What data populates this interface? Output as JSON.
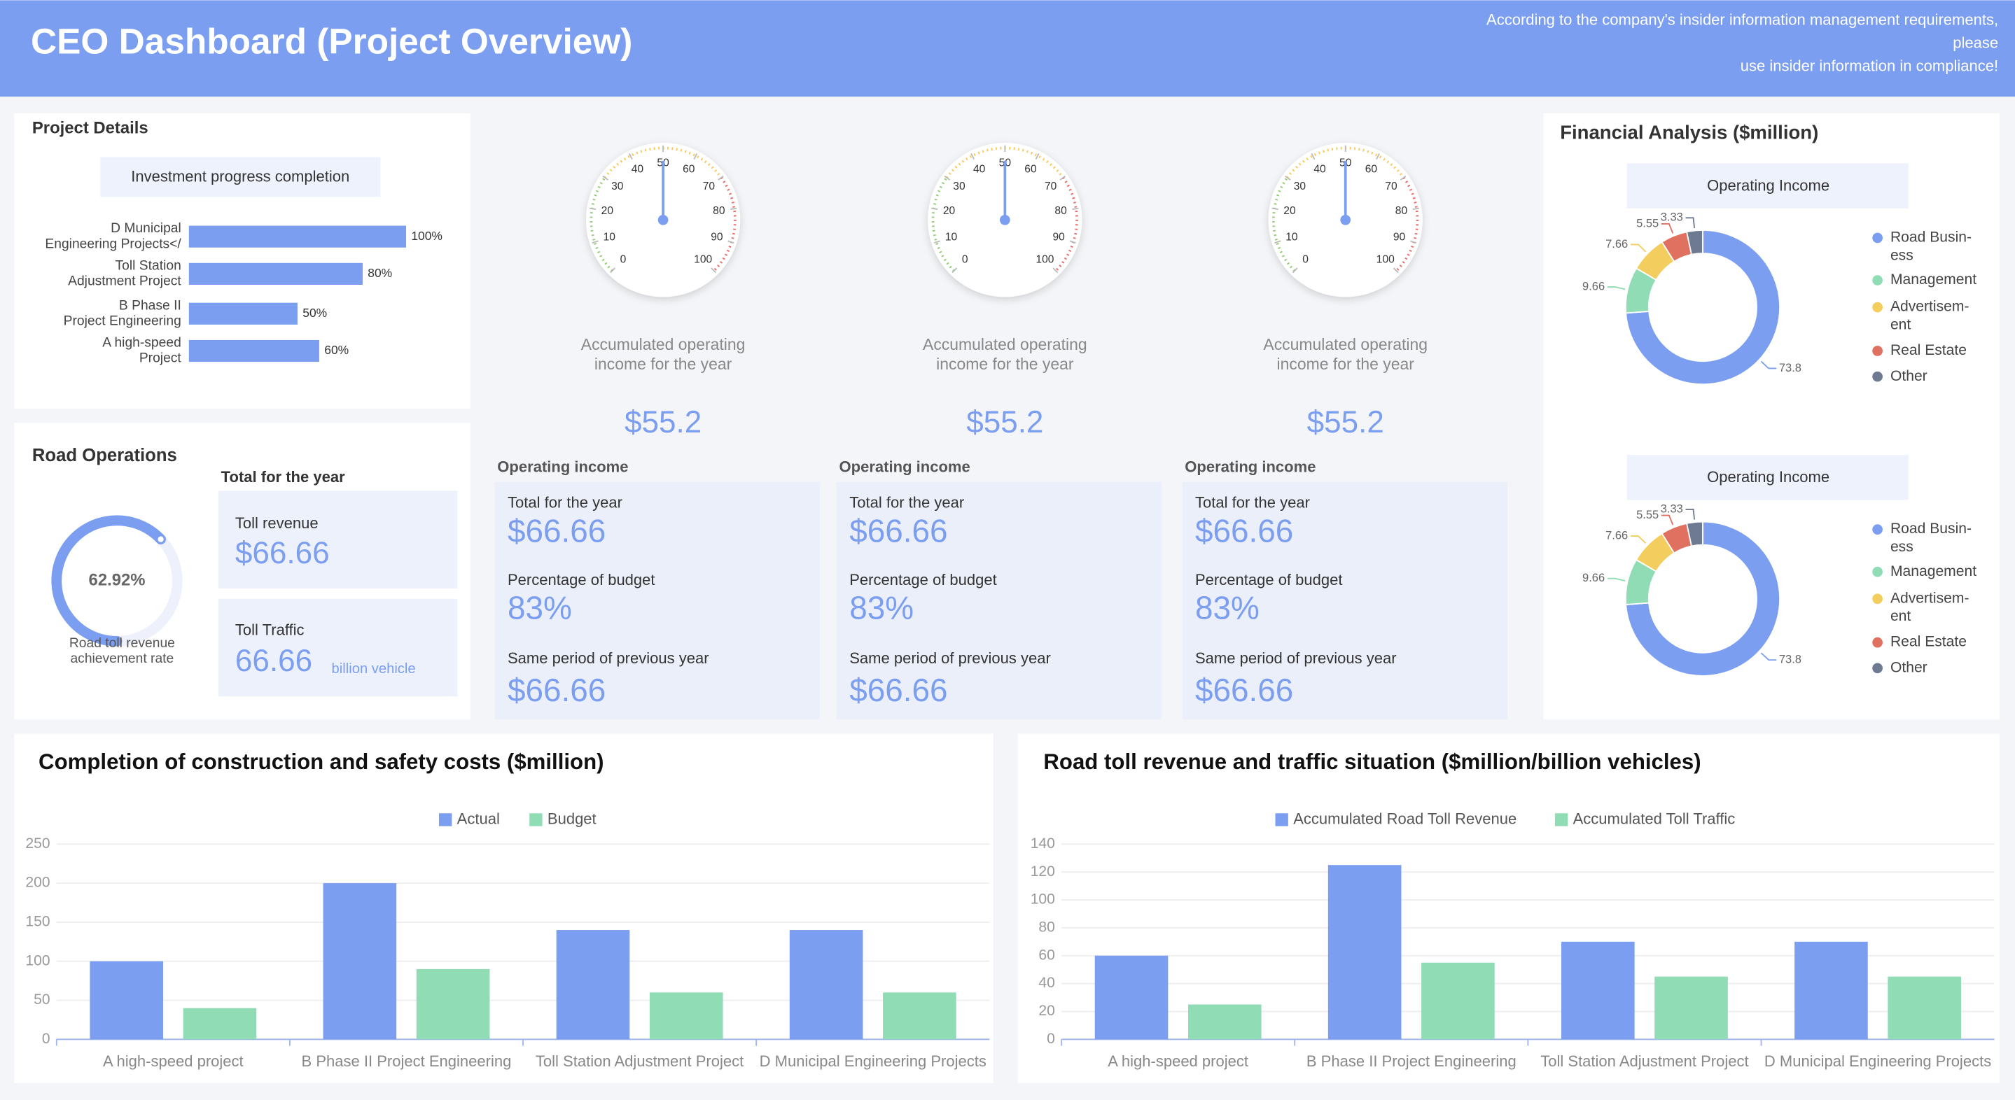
{
  "header": {
    "title": "CEO Dashboard (Project Overview)",
    "notice": [
      "According to the company's insider information management requirements,",
      "please",
      "use insider information in compliance!"
    ]
  },
  "panels": {
    "project_details": "Project Details",
    "road_operations": "Road Operations",
    "road_total_heading": "Total for the year",
    "financial_analysis": "Financial Analysis ($million)"
  },
  "road_stats": [
    {
      "label": "Toll revenue",
      "value": "$66.66"
    },
    {
      "label": "Toll Traffic",
      "value": "66.66",
      "unit": "billion vehicle"
    }
  ],
  "income_cards": [
    {
      "heading": "Operating income",
      "items": [
        {
          "label": "Total for the year",
          "value": "$66.66"
        },
        {
          "label": "Percentage of budget",
          "value": "83%"
        },
        {
          "label": "Same period of previous year",
          "value": "$66.66"
        }
      ]
    },
    {
      "heading": "Operating income",
      "items": [
        {
          "label": "Total for the year",
          "value": "$66.66"
        },
        {
          "label": "Percentage of budget",
          "value": "83%"
        },
        {
          "label": "Same period of previous year",
          "value": "$66.66"
        }
      ]
    },
    {
      "heading": "Operating income",
      "items": [
        {
          "label": "Total for the year",
          "value": "$66.66"
        },
        {
          "label": "Percentage of budget",
          "value": "83%"
        },
        {
          "label": "Same period of previous year",
          "value": "$66.66"
        }
      ]
    }
  ],
  "chart_data": [
    {
      "type": "hbar",
      "title": "Investment progress completion",
      "categories": [
        [
          "D Municipal",
          "Engineering Projects</"
        ],
        [
          "Toll Station",
          "Adjustment Project"
        ],
        [
          "B Phase II",
          "Project Engineering"
        ],
        [
          "A high-speed",
          "Project"
        ]
      ],
      "values": [
        100,
        80,
        50,
        60
      ],
      "value_labels": [
        "100%",
        "80%",
        "50%",
        "60%"
      ],
      "color": "#7b9ef0"
    },
    {
      "type": "gauge",
      "value": 50,
      "ylim": [
        0,
        100
      ],
      "yticks": [
        0,
        10,
        20,
        30,
        40,
        50,
        60,
        70,
        80,
        90,
        100
      ],
      "caption": [
        "Accumulated operating",
        "income for the year"
      ],
      "annotation": "$55.2",
      "color": "#7b9ef0"
    },
    {
      "type": "gauge",
      "value": 50,
      "ylim": [
        0,
        100
      ],
      "yticks": [
        0,
        10,
        20,
        30,
        40,
        50,
        60,
        70,
        80,
        90,
        100
      ],
      "caption": [
        "Accumulated operating",
        "income for the year"
      ],
      "annotation": "$55.2",
      "color": "#7b9ef0"
    },
    {
      "type": "gauge",
      "value": 50,
      "ylim": [
        0,
        100
      ],
      "yticks": [
        0,
        10,
        20,
        30,
        40,
        50,
        60,
        70,
        80,
        90,
        100
      ],
      "caption": [
        "Accumulated operating",
        "income for the year"
      ],
      "annotation": "$55.2",
      "color": "#7b9ef0"
    },
    {
      "type": "ring",
      "value": 62.92,
      "value_label": "62.92%",
      "caption": [
        "Road toll revenue",
        "achievement rate"
      ],
      "color": "#7b9ef0"
    },
    {
      "type": "pie",
      "title": "Operating Income",
      "categories": [
        [
          "Road Busin-",
          "ess"
        ],
        [
          "Management"
        ],
        [
          "Advertisem-",
          "ent"
        ],
        [
          "Real Estate"
        ],
        [
          "Other"
        ]
      ],
      "values": [
        73.8,
        9.66,
        7.66,
        5.55,
        3.33
      ],
      "colors": [
        "#7b9ef0",
        "#8fdcb5",
        "#f3cd5e",
        "#e0705f",
        "#6e7a91"
      ]
    },
    {
      "type": "pie",
      "title": "Operating Income",
      "categories": [
        [
          "Road Busin-",
          "ess"
        ],
        [
          "Management"
        ],
        [
          "Advertisem-",
          "ent"
        ],
        [
          "Real Estate"
        ],
        [
          "Other"
        ]
      ],
      "values": [
        73.8,
        9.66,
        7.66,
        5.55,
        3.33
      ],
      "colors": [
        "#7b9ef0",
        "#8fdcb5",
        "#f3cd5e",
        "#e0705f",
        "#6e7a91"
      ]
    },
    {
      "type": "bar",
      "title": "Completion of construction and safety costs ($million)",
      "categories": [
        "A high-speed project",
        "B Phase II Project Engineering",
        "Toll Station Adjustment Project",
        "D Municipal Engineering Projects"
      ],
      "series": [
        {
          "name": "Actual",
          "color": "#7b9ef0",
          "values": [
            100,
            200,
            140,
            140
          ]
        },
        {
          "name": "Budget",
          "color": "#8fdcb5",
          "values": [
            40,
            90,
            60,
            60
          ]
        }
      ],
      "ylim": [
        0,
        250
      ],
      "yticks": [
        0,
        50,
        100,
        150,
        200,
        250
      ],
      "grid": true
    },
    {
      "type": "bar",
      "title": "Road toll revenue and traffic situation ($million/billion vehicles)",
      "categories": [
        "A high-speed project",
        "B Phase II Project Engineering",
        "Toll Station Adjustment Project",
        "D Municipal Engineering Projects"
      ],
      "series": [
        {
          "name": "Accumulated Road Toll Revenue",
          "color": "#7b9ef0",
          "values": [
            60,
            125,
            70,
            70
          ]
        },
        {
          "name": "Accumulated Toll Traffic",
          "color": "#8fdcb5",
          "values": [
            25,
            55,
            45,
            45
          ]
        }
      ],
      "ylim": [
        0,
        140
      ],
      "yticks": [
        0,
        20,
        40,
        60,
        80,
        100,
        120,
        140
      ],
      "grid": true
    }
  ]
}
